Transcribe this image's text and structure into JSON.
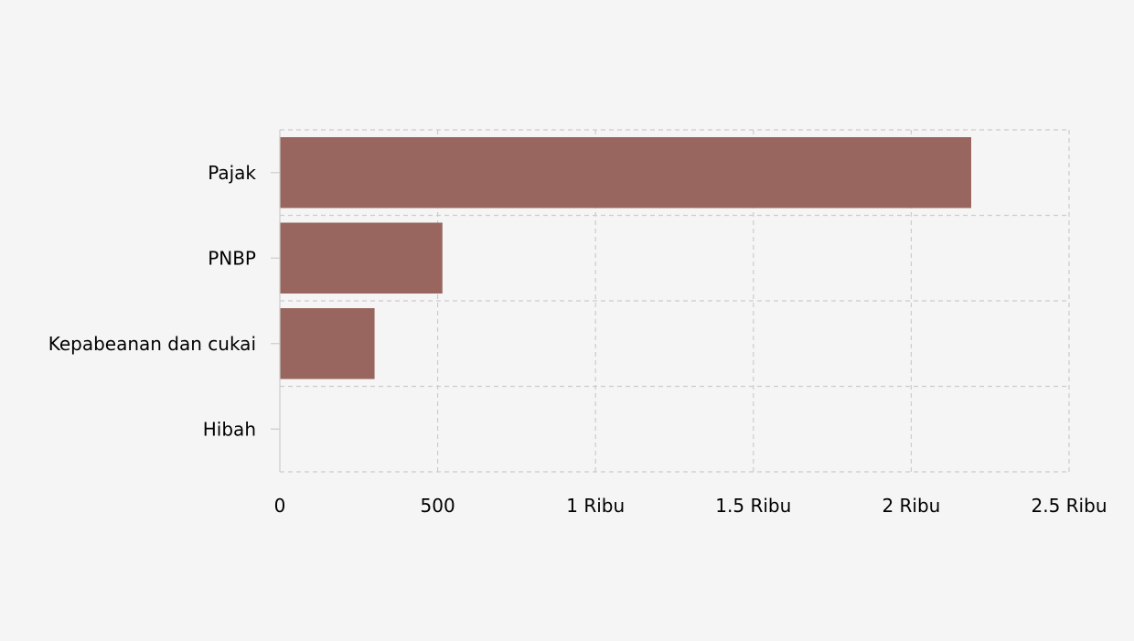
{
  "chart_data": {
    "type": "bar",
    "orientation": "horizontal",
    "categories": [
      "Pajak",
      "PNBP",
      "Kepabeanan dan cukai",
      "Hibah"
    ],
    "values": [
      2190,
      515,
      300,
      1
    ],
    "title": "",
    "xlabel": "",
    "ylabel": "",
    "xlim": [
      0,
      2500
    ],
    "x_ticks": [
      {
        "value": 0,
        "label": "0"
      },
      {
        "value": 500,
        "label": "500"
      },
      {
        "value": 1000,
        "label": "1 Ribu"
      },
      {
        "value": 1500,
        "label": "1.5 Ribu"
      },
      {
        "value": 2000,
        "label": "2 Ribu"
      },
      {
        "value": 2500,
        "label": "2.5 Ribu"
      }
    ],
    "grid": true,
    "grid_style": "dashed",
    "legend": "none",
    "colors": {
      "bar": "#98665f",
      "background": "#f5f5f5",
      "grid": "#cccccc",
      "text": "#000000"
    }
  }
}
